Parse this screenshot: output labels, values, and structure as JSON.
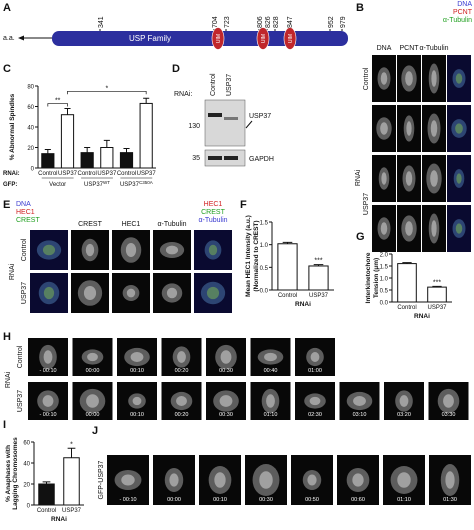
{
  "panels": {
    "A": {
      "label": "A",
      "axis_label": "a.a.",
      "positions": [
        "341",
        "704",
        "723",
        "806",
        "826",
        "828",
        "847",
        "952",
        "979"
      ],
      "domain": "USP Family",
      "motifs": [
        "UIM",
        "UIM",
        "UIM"
      ]
    },
    "B": {
      "label": "B",
      "columns": [
        "DNA",
        "PCNT",
        "α-Tubulin"
      ],
      "legend": [
        {
          "name": "DNA",
          "color": "#3a3ad0"
        },
        {
          "name": "PCNT",
          "color": "#d02020"
        },
        {
          "name": "α-Tubulin",
          "color": "#20a020"
        }
      ],
      "rows": [
        "Control",
        "USP37"
      ],
      "group": "RNAi"
    },
    "D": {
      "label": "D",
      "rnai": "RNAi:",
      "lanes": [
        "Control",
        "USP37"
      ],
      "markers": [
        "130",
        "35"
      ],
      "bands": [
        "USP37",
        "GAPDH"
      ]
    },
    "E": {
      "label": "E",
      "legend_left": [
        {
          "name": "DNA",
          "color": "#3a3ad0"
        },
        {
          "name": "HEC1",
          "color": "#d02020"
        },
        {
          "name": "CREST",
          "color": "#20a020"
        }
      ],
      "columns": [
        "CREST",
        "HEC1",
        "α-Tubulin"
      ],
      "legend_right": [
        {
          "name": "HEC1",
          "color": "#d02020"
        },
        {
          "name": "CREST",
          "color": "#20a020"
        },
        {
          "name": "α-Tubulin",
          "color": "#3a3ad0"
        }
      ],
      "rows": [
        "Control",
        "USP37"
      ],
      "group": "RNAi"
    },
    "H": {
      "label": "H",
      "rows": [
        {
          "name": "Control",
          "times": [
            "- 00:10",
            "00:00",
            "00:10",
            "00:20",
            "00:30",
            "00:40",
            "01:00"
          ]
        },
        {
          "name": "USP37",
          "times": [
            "- 00:10",
            "00:00",
            "00:10",
            "00:20",
            "00:30",
            "01:10",
            "02:30",
            "03:10",
            "03:20",
            "03:30"
          ]
        }
      ],
      "group": "RNAi"
    },
    "J": {
      "label": "J",
      "row": "GFP-USP37",
      "times": [
        "- 00:10",
        "00:00",
        "00:10",
        "00:30",
        "00:50",
        "00:60",
        "01:10",
        "01:30"
      ]
    }
  },
  "chart_data": [
    {
      "type": "bar",
      "panel": "C",
      "y_label": [
        "% Abnormal Spindles"
      ],
      "categories": [
        "Control",
        "USP37",
        "Control",
        "USP37",
        "Control",
        "USP37"
      ],
      "values": [
        14,
        52,
        15,
        20,
        15,
        63
      ],
      "errors": [
        4,
        6,
        5,
        7,
        4,
        5
      ],
      "colors": [
        "#111111",
        "#ffffff",
        "#111111",
        "#ffffff",
        "#111111",
        "#ffffff"
      ],
      "ylim": [
        0,
        80
      ],
      "yticks": [
        0,
        20,
        40,
        60,
        80
      ],
      "row_labels": [
        "RNAi:",
        "GFP:"
      ],
      "groups": [
        {
          "name": "Vector"
        },
        {
          "name": "USP37",
          "superscript": "WT"
        },
        {
          "name": "USP37",
          "superscript": "C350A"
        }
      ],
      "significance": [
        {
          "label": "**",
          "bars": [
            0,
            1
          ]
        },
        {
          "label": "*",
          "bars": [
            1,
            5
          ]
        }
      ]
    },
    {
      "type": "bar",
      "panel": "F",
      "y_label": [
        "Mean HEC1 Intensity (a.u.)",
        "(Normalized to CREST)"
      ],
      "x_label": "RNAi",
      "categories": [
        "Control",
        "USP37"
      ],
      "values": [
        1.02,
        0.53
      ],
      "errors": [
        0.03,
        0.03
      ],
      "colors": [
        "#ffffff",
        "#ffffff"
      ],
      "ylim": [
        0,
        1.5
      ],
      "yticks": [
        {
          "value": 0,
          "label": "0.0"
        },
        0.5,
        {
          "value": 1,
          "label": "1.0"
        },
        1.5
      ],
      "significance": [
        {
          "label": "***",
          "bars": [
            1
          ]
        }
      ]
    },
    {
      "type": "bar",
      "panel": "G",
      "y_label": [
        "Interkinetochore",
        "Tension (μm)"
      ],
      "x_label": "RNAi",
      "categories": [
        "Control",
        "USP37"
      ],
      "values": [
        1.6,
        0.62
      ],
      "errors": [
        0.04,
        0.03
      ],
      "colors": [
        "#ffffff",
        "#ffffff"
      ],
      "ylim": [
        0,
        2
      ],
      "yticks": [
        {
          "value": 0,
          "label": "0.0"
        },
        0.5,
        {
          "value": 1,
          "label": "1.0"
        },
        1.5,
        {
          "value": 2,
          "label": "2.0"
        }
      ],
      "significance": [
        {
          "label": "***",
          "bars": [
            1
          ]
        }
      ]
    },
    {
      "type": "bar",
      "panel": "I",
      "y_label": [
        "% Anaphases with",
        "Lagging Chromosomes"
      ],
      "x_label": "RNAi",
      "categories": [
        "Control",
        "USP37"
      ],
      "values": [
        20,
        45
      ],
      "errors": [
        2,
        9
      ],
      "colors": [
        "#111111",
        "#ffffff"
      ],
      "ylim": [
        0,
        60
      ],
      "yticks": [
        0,
        20,
        40,
        60
      ],
      "significance": [
        {
          "label": "*",
          "bars": [
            1
          ]
        }
      ]
    }
  ]
}
